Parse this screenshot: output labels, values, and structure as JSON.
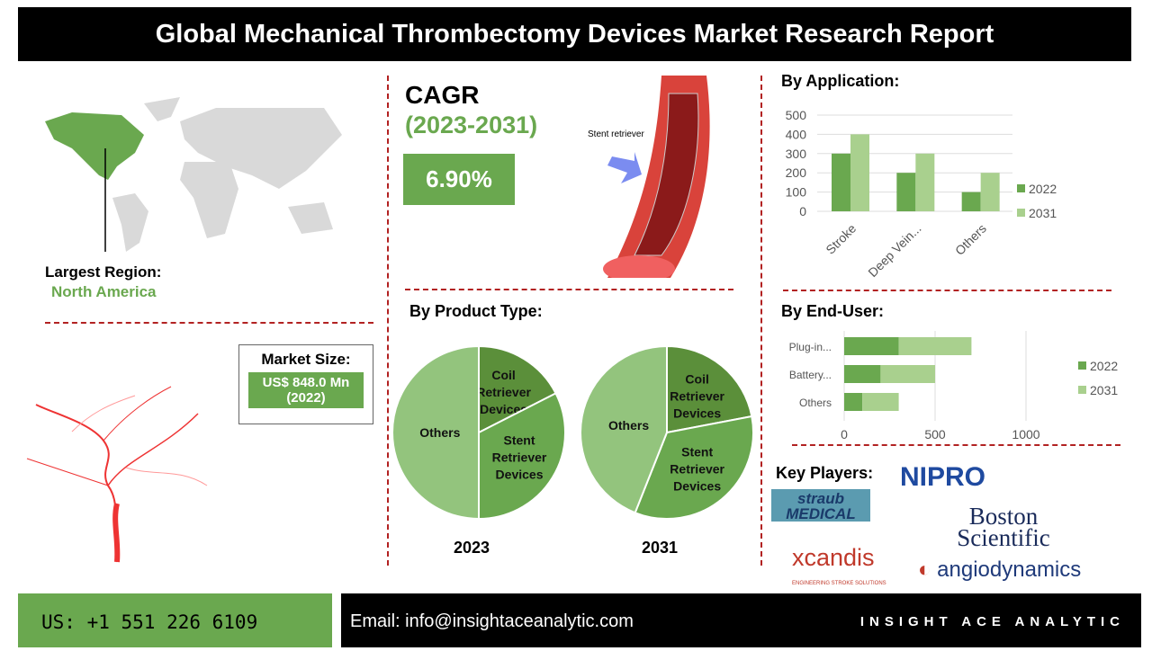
{
  "title": "Global Mechanical Thrombectomy Devices Market Research Report",
  "region": {
    "label": "Largest Region:",
    "value": "North America"
  },
  "cagr": {
    "label": "CAGR",
    "period": "(2023-2031)",
    "value": "6.90%"
  },
  "illustration": {
    "label": "Stent retriever"
  },
  "market_size": {
    "label": "Market Size:",
    "value": "US$ 848.0 Mn",
    "year": "(2022)"
  },
  "sections": {
    "application": "By Application:",
    "product": "By Product Type:",
    "end_user": "By End-User:",
    "key_players": "Key Players:"
  },
  "key_players": [
    "straub MEDICAL",
    "NIPRO",
    "Boston Scientific",
    "xcandis",
    "ENGINEERING STROKE SOLUTIONS",
    "angiodynamics"
  ],
  "footer": {
    "phone": "US: +1 551 226 6109",
    "email": "Email: info@insightaceanalytic.com",
    "brand": "INSIGHT ACE ANALYTIC"
  },
  "colors": {
    "dark_green": "#5b8f3a",
    "mid_green": "#6aa84f",
    "light_green": "#a9d08e",
    "pie_light": "#93c47d",
    "divider": "#b22222"
  },
  "chart_data": [
    {
      "type": "bar",
      "name": "By Application",
      "categories": [
        "Stroke",
        "Deep Vein...",
        "Others"
      ],
      "series": [
        {
          "name": "2022",
          "values": [
            300,
            200,
            100
          ]
        },
        {
          "name": "2031",
          "values": [
            400,
            300,
            200
          ]
        }
      ],
      "ylim": [
        0,
        500
      ],
      "yticks": [
        "0",
        "100",
        "200",
        "300",
        "400",
        "500"
      ],
      "grid": true,
      "legend": "right"
    },
    {
      "type": "bar",
      "orientation": "horizontal",
      "stacked": true,
      "name": "By End-User",
      "categories": [
        "Plug-in...",
        "Battery...",
        "Others"
      ],
      "series": [
        {
          "name": "2022",
          "values": [
            300,
            200,
            100
          ]
        },
        {
          "name": "2031",
          "values": [
            400,
            300,
            200
          ]
        }
      ],
      "xlim": [
        0,
        1500
      ],
      "xticks": [
        "0",
        "500",
        "1000"
      ],
      "grid": true,
      "legend": "right"
    },
    {
      "type": "pie",
      "title": "2023",
      "labels": [
        "Coil Retriever Devices",
        "Stent Retriever Devices",
        "Others"
      ],
      "values": [
        17.5,
        32.5,
        50
      ]
    },
    {
      "type": "pie",
      "title": "2031",
      "labels": [
        "Coil Retriever Devices",
        "Stent Retriever Devices",
        "Others"
      ],
      "values": [
        22,
        34,
        44
      ]
    }
  ]
}
